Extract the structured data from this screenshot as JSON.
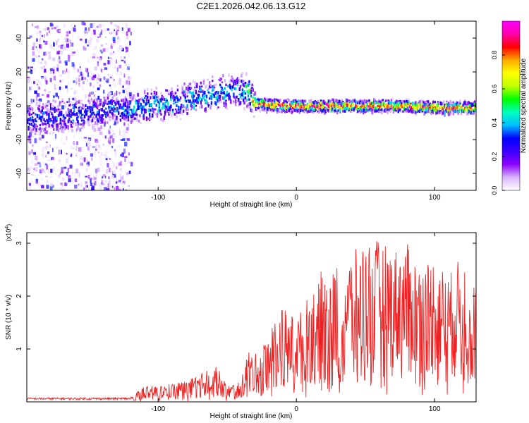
{
  "title": "C2E1.2026.042.06.13.G12",
  "chart_data": [
    {
      "type": "heatmap",
      "title": "C2E1.2026.042.06.13.G12",
      "xlabel": "Height of straight line (km)",
      "ylabel": "Frequency (Hz)",
      "xlim": [
        -195,
        130
      ],
      "ylim": [
        -50,
        50
      ],
      "xticks": [
        -100,
        0,
        100
      ],
      "yticks": [
        -40,
        -20,
        0,
        20,
        40
      ],
      "xtick_labels": [
        "-100",
        "0",
        "100"
      ],
      "ytick_labels": [
        "-40",
        "-20",
        "0",
        "20",
        "40"
      ],
      "grid": false,
      "ridge": {
        "description_x": [
          -195,
          -170,
          -150,
          -130,
          -110,
          -90,
          -70,
          -55,
          -45,
          -38,
          -33,
          -30,
          -20,
          -10,
          0,
          20,
          40,
          60,
          80,
          100,
          120,
          130
        ],
        "center_hz": [
          -8,
          -6,
          -4,
          -2,
          0,
          2,
          5,
          8,
          10,
          9,
          5,
          1,
          1,
          0,
          0,
          0,
          0,
          0,
          0,
          -1,
          -1,
          -1
        ],
        "peak_amplitude": [
          0.35,
          0.35,
          0.35,
          0.4,
          0.45,
          0.45,
          0.45,
          0.45,
          0.45,
          0.5,
          0.65,
          0.9,
          0.95,
          0.95,
          0.95,
          0.95,
          0.95,
          0.9,
          0.9,
          0.9,
          0.9,
          0.85
        ]
      },
      "colorbar": {
        "label": "Normalized spectral amplitude",
        "range": [
          0,
          1
        ],
        "ticks": [
          0.0,
          0.2,
          0.4,
          0.6,
          0.8
        ],
        "tick_labels": [
          "0.0",
          "0.2",
          "0.4",
          "0.6",
          "0.8"
        ],
        "colors": [
          "#ffffff",
          "#d8b4fe",
          "#8b00ff",
          "#3b00ff",
          "#0000ff",
          "#00bfff",
          "#00ffbf",
          "#00ff00",
          "#bfff00",
          "#ffff00",
          "#ffaa00",
          "#ff0000",
          "#ff00aa",
          "#ff00ff"
        ]
      }
    },
    {
      "type": "line",
      "xlabel": "Height of straight line (km)",
      "ylabel": "SNR (10 * v/v)",
      "y_multiplier_label": "(x10",
      "y_multiplier_exp": "4",
      "y_multiplier_close": ")",
      "xlim": [
        -195,
        130
      ],
      "ylim": [
        0,
        3.2
      ],
      "xticks": [
        -100,
        0,
        100
      ],
      "yticks": [
        1,
        2,
        3
      ],
      "xtick_labels": [
        "-100",
        "0",
        "100"
      ],
      "ytick_labels": [
        "1",
        "2",
        "3"
      ],
      "grid": false,
      "line_color": "#ee2222",
      "envelope_x": [
        -195,
        -150,
        -120,
        -110,
        -100,
        -90,
        -80,
        -70,
        -60,
        -50,
        -40,
        -35,
        -30,
        -25,
        -20,
        -15,
        -10,
        -5,
        0,
        5,
        10,
        15,
        20,
        25,
        30,
        40,
        50,
        60,
        70,
        80,
        90,
        100,
        110,
        120,
        130
      ],
      "envelope_y": [
        0.06,
        0.07,
        0.1,
        0.3,
        0.3,
        0.35,
        0.4,
        0.5,
        0.8,
        0.3,
        0.4,
        1.0,
        0.9,
        1.0,
        1.4,
        1.6,
        1.8,
        1.7,
        1.6,
        1.8,
        2.1,
        2.3,
        2.6,
        2.4,
        2.7,
        2.8,
        3.1,
        3.05,
        2.9,
        3.0,
        2.6,
        2.8,
        2.4,
        2.8,
        2.3
      ]
    }
  ]
}
